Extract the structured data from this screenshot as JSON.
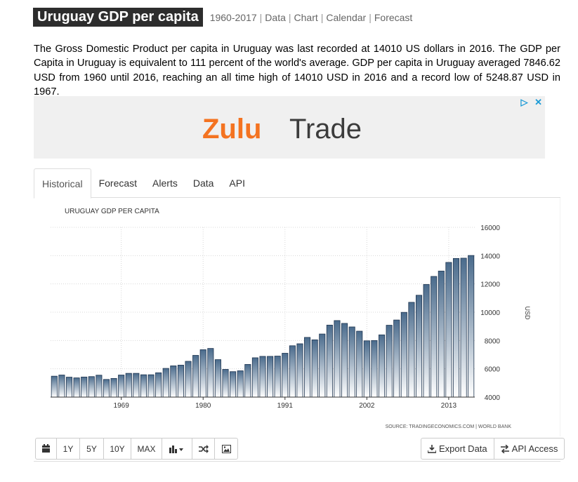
{
  "header": {
    "title": "Uruguay GDP per capita",
    "range": "1960-2017",
    "links": [
      "Data",
      "Chart",
      "Calendar",
      "Forecast"
    ]
  },
  "description": "The Gross Domestic Product per capita in Uruguay was last recorded at 14010 US dollars in 2016. The GDP per Capita in Uruguay is equivalent to 111 percent of the world's average. GDP per capita in Uruguay averaged 7846.62 USD from 1960 until 2016, reaching an all time high of 14010 USD in 2016 and a record low of 5248.87 USD in 1967.",
  "ad": {
    "brand_part1": "Zulu",
    "brand_part2": "Trade",
    "brand_color": "#f47321",
    "text_color": "#3c3c3c"
  },
  "tabs": [
    {
      "label": "Historical",
      "active": true
    },
    {
      "label": "Forecast",
      "active": false
    },
    {
      "label": "Alerts",
      "active": false
    },
    {
      "label": "Data",
      "active": false
    },
    {
      "label": "API",
      "active": false
    }
  ],
  "chart_data": {
    "type": "bar",
    "title": "URUGUAY GDP PER CAPITA",
    "ylabel": "USD",
    "source": "SOURCE: TRADINGECONOMICS.COM | WORLD BANK",
    "ylim": [
      4000,
      16000
    ],
    "yticks": [
      4000,
      6000,
      8000,
      10000,
      12000,
      14000,
      16000
    ],
    "xticks": [
      1969,
      1980,
      1991,
      2002,
      2013
    ],
    "grid": true,
    "bar_color_top": "#4a6b8c",
    "bar_color_bottom": "#ffffff",
    "x": [
      1960,
      1961,
      1962,
      1963,
      1964,
      1965,
      1966,
      1967,
      1968,
      1969,
      1970,
      1971,
      1972,
      1973,
      1974,
      1975,
      1976,
      1977,
      1978,
      1979,
      1980,
      1981,
      1982,
      1983,
      1984,
      1985,
      1986,
      1987,
      1988,
      1989,
      1990,
      1991,
      1992,
      1993,
      1994,
      1995,
      1996,
      1997,
      1998,
      1999,
      2000,
      2001,
      2002,
      2003,
      2004,
      2005,
      2006,
      2007,
      2008,
      2009,
      2010,
      2011,
      2012,
      2013,
      2014,
      2015,
      2016
    ],
    "values": [
      5480,
      5560,
      5410,
      5360,
      5420,
      5450,
      5550,
      5249,
      5320,
      5560,
      5680,
      5680,
      5580,
      5580,
      5720,
      6030,
      6210,
      6260,
      6530,
      6950,
      7350,
      7440,
      6650,
      5960,
      5800,
      5860,
      6310,
      6780,
      6880,
      6880,
      6900,
      7100,
      7630,
      7770,
      8220,
      8050,
      8460,
      9090,
      9410,
      9210,
      8960,
      8660,
      7980,
      8000,
      8400,
      9080,
      9450,
      9990,
      10700,
      11200,
      11960,
      12530,
      12910,
      13520,
      13800,
      13820,
      14010
    ]
  },
  "toolbar": {
    "left": [
      {
        "icon": "calendar-icon",
        "label": ""
      },
      {
        "icon": "",
        "label": "1Y"
      },
      {
        "icon": "",
        "label": "5Y"
      },
      {
        "icon": "",
        "label": "10Y"
      },
      {
        "icon": "",
        "label": "MAX"
      },
      {
        "icon": "bar-chart-icon",
        "label": ""
      },
      {
        "icon": "shuffle-icon",
        "label": ""
      },
      {
        "icon": "image-icon",
        "label": ""
      }
    ],
    "export_label": "Export Data",
    "api_label": "API Access"
  }
}
